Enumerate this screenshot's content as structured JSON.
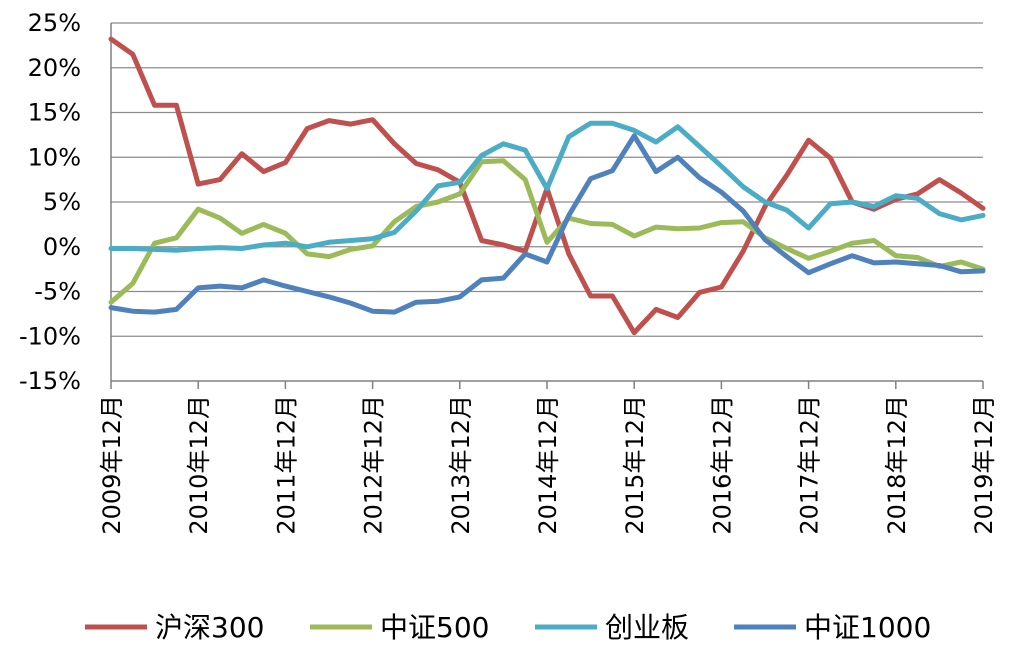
{
  "chart_data": {
    "type": "line",
    "title": "",
    "xlabel": "",
    "ylabel": "",
    "ylim": [
      -15,
      25
    ],
    "y_ticks": [
      -15,
      -10,
      -5,
      0,
      5,
      10,
      15,
      20,
      25
    ],
    "y_tick_labels": [
      "-15%",
      "-10%",
      "-5%",
      "0%",
      "5%",
      "10%",
      "15%",
      "20%",
      "25%"
    ],
    "x_tick_labels": [
      "2009年12月",
      "2010年12月",
      "2011年12月",
      "2012年12月",
      "2013年12月",
      "2014年12月",
      "2015年12月",
      "2016年12月",
      "2017年12月",
      "2018年12月",
      "2019年12月"
    ],
    "points_per_year": 4,
    "grid": "horizontal",
    "legend_position": "bottom",
    "colors": {
      "沪深300": "#c0504d",
      "中证500": "#9bbb59",
      "创业板": "#4bacc6",
      "中证1000": "#4f81bd"
    },
    "series": [
      {
        "name": "沪深300",
        "color": "#c0504d",
        "values": [
          23.2,
          21.5,
          15.8,
          15.8,
          7.0,
          7.5,
          10.4,
          8.4,
          9.4,
          13.2,
          14.1,
          13.7,
          14.2,
          11.5,
          9.3,
          8.6,
          7.2,
          0.7,
          0.2,
          -0.5,
          6.5,
          -0.8,
          -5.5,
          -5.5,
          -9.6,
          -7.0,
          -7.9,
          -5.1,
          -4.5,
          -0.5,
          4.5,
          8.0,
          11.9,
          9.9,
          5.0,
          4.2,
          5.3,
          5.9,
          7.5,
          6.0,
          4.3
        ]
      },
      {
        "name": "中证500",
        "color": "#9bbb59",
        "values": [
          -6.2,
          -4.1,
          0.4,
          1.0,
          4.2,
          3.2,
          1.5,
          2.5,
          1.5,
          -0.8,
          -1.1,
          -0.3,
          0.1,
          2.8,
          4.5,
          5.0,
          5.9,
          9.5,
          9.6,
          7.5,
          0.5,
          3.2,
          2.6,
          2.5,
          1.2,
          2.2,
          2.0,
          2.1,
          2.7,
          2.8,
          1.0,
          -0.2,
          -1.3,
          -0.5,
          0.4,
          0.7,
          -1.0,
          -1.2,
          -2.2,
          -1.7,
          -2.5
        ]
      },
      {
        "name": "创业板",
        "color": "#4bacc6",
        "values": [
          -0.2,
          -0.2,
          -0.3,
          -0.4,
          -0.2,
          -0.1,
          -0.2,
          0.2,
          0.4,
          0.0,
          0.5,
          0.7,
          0.9,
          1.6,
          4.0,
          6.8,
          7.2,
          10.2,
          11.5,
          10.8,
          6.5,
          12.3,
          13.8,
          13.8,
          13.0,
          11.7,
          13.4,
          11.2,
          9.0,
          6.7,
          5.0,
          4.1,
          2.1,
          4.8,
          5.0,
          4.5,
          5.7,
          5.4,
          3.7,
          3.0,
          3.5
        ]
      },
      {
        "name": "中证1000",
        "color": "#4f81bd",
        "values": [
          -6.8,
          -7.2,
          -7.3,
          -7.0,
          -4.6,
          -4.4,
          -4.6,
          -3.7,
          -4.4,
          -5.0,
          -5.6,
          -6.3,
          -7.2,
          -7.3,
          -6.2,
          -6.1,
          -5.6,
          -3.7,
          -3.5,
          -0.8,
          -1.7,
          3.5,
          7.6,
          8.5,
          12.4,
          8.4,
          10.0,
          7.7,
          6.1,
          4.0,
          0.8,
          -1.1,
          -2.9,
          -1.9,
          -1.0,
          -1.8,
          -1.7,
          -1.9,
          -2.1,
          -2.8,
          -2.7
        ]
      }
    ]
  }
}
